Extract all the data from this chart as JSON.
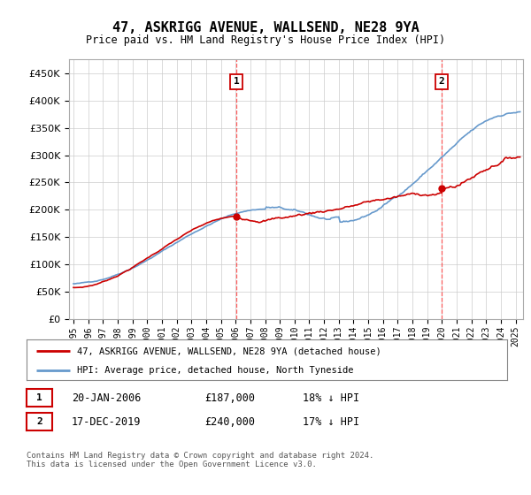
{
  "title": "47, ASKRIGG AVENUE, WALLSEND, NE28 9YA",
  "subtitle": "Price paid vs. HM Land Registry's House Price Index (HPI)",
  "ytick_values": [
    0,
    50000,
    100000,
    150000,
    200000,
    250000,
    300000,
    350000,
    400000,
    450000
  ],
  "ylim": [
    0,
    475000
  ],
  "xlim_start": 1994.7,
  "xlim_end": 2025.5,
  "hpi_color": "#6699cc",
  "price_color": "#cc0000",
  "dashed_line_color": "#ff4444",
  "marker1_x": 2006.05,
  "marker1_y": 187000,
  "marker2_x": 2019.96,
  "marker2_y": 240000,
  "legend_label1": "47, ASKRIGG AVENUE, WALLSEND, NE28 9YA (detached house)",
  "legend_label2": "HPI: Average price, detached house, North Tyneside",
  "table_row1": [
    "1",
    "20-JAN-2006",
    "£187,000",
    "18% ↓ HPI"
  ],
  "table_row2": [
    "2",
    "17-DEC-2019",
    "£240,000",
    "17% ↓ HPI"
  ],
  "footnote": "Contains HM Land Registry data © Crown copyright and database right 2024.\nThis data is licensed under the Open Government Licence v3.0.",
  "background_color": "#ffffff",
  "grid_color": "#cccccc"
}
